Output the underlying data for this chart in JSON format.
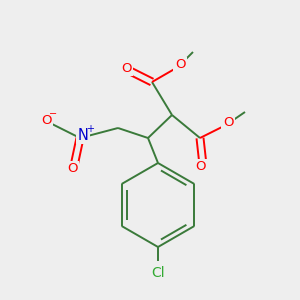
{
  "background_color": "#eeeeee",
  "bond_color": "#3a7a3a",
  "atom_colors": {
    "O": "#ff0000",
    "N": "#0000cc",
    "Cl": "#33aa33",
    "C": "#3a7a3a"
  },
  "figsize": [
    3.0,
    3.0
  ],
  "dpi": 100
}
